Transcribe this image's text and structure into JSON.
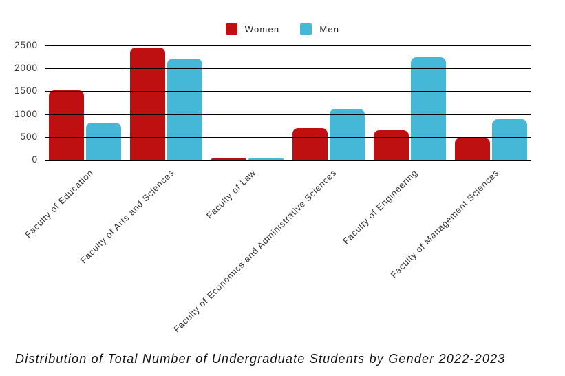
{
  "chart_data": {
    "type": "bar",
    "title": "Distribution of Total Number of Undergraduate Students by Gender 2022-2023",
    "categories": [
      "Faculty of Education",
      "Faculty of Arts and Sciences",
      "Faculty of Law",
      "Faculty of Economics and Administrative Sciences",
      "Faculty of Engineering",
      "Faculty of Management Sciences"
    ],
    "series": [
      {
        "name": "Women",
        "color": "#BE1010",
        "values": [
          1520,
          2460,
          30,
          690,
          650,
          480
        ]
      },
      {
        "name": "Men",
        "color": "#45B7D7",
        "values": [
          810,
          2220,
          45,
          1110,
          2250,
          890
        ]
      }
    ],
    "ylim": [
      0,
      2500
    ],
    "yticks": [
      0,
      500,
      1000,
      1500,
      2000,
      2500
    ],
    "grid": true,
    "gridline_color": "#000000",
    "legend_position": "top-center",
    "xlabel": "",
    "ylabel": ""
  }
}
